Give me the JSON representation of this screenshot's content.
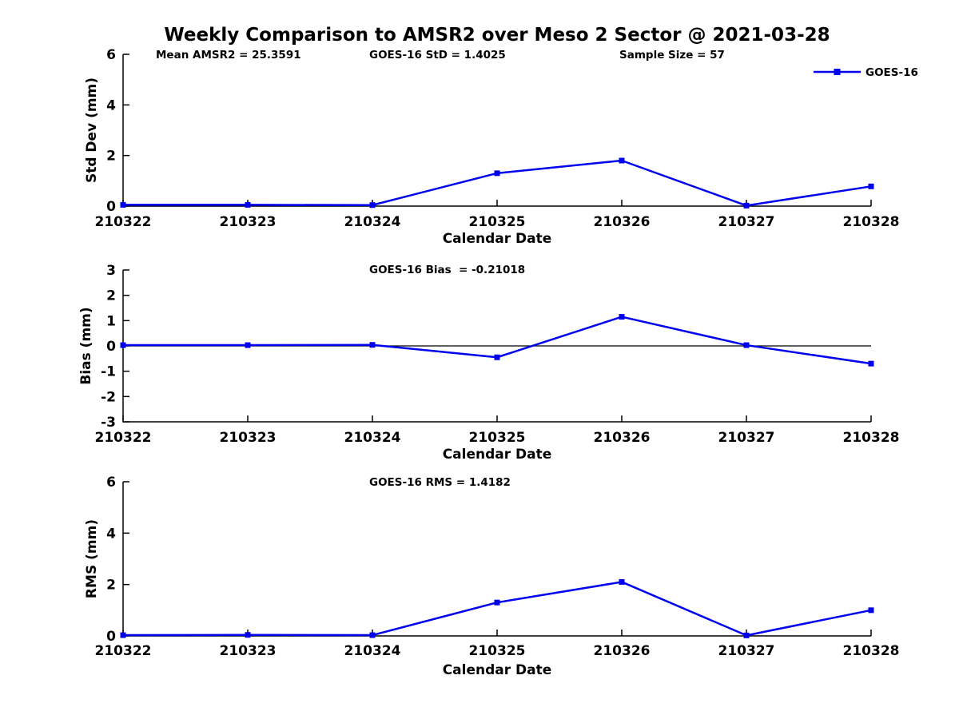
{
  "title": "Weekly Comparison to AMSR2 over Meso 2 Sector @ 2021-03-28",
  "legend": {
    "label": "GOES-16",
    "marker": "filled-square",
    "position": "top-right-outside"
  },
  "colors": {
    "line": "#0000EE",
    "axis": "#000000",
    "text": "#000000",
    "background": "#FFFFFF"
  },
  "chart_data": [
    {
      "type": "line",
      "id": "std-dev",
      "ylabel": "Std Dev (mm)",
      "xlabel": "Calendar Date",
      "categories": [
        "210322",
        "210323",
        "210324",
        "210325",
        "210326",
        "210327",
        "210328"
      ],
      "yticks": [
        0,
        2,
        4,
        6
      ],
      "ylim": [
        0,
        6
      ],
      "grid": false,
      "zero_line": false,
      "annotations": [
        "Mean AMSR2 = 25.3591",
        "GOES-16 StD = 1.4025",
        "Sample Size = 57"
      ],
      "series": [
        {
          "name": "GOES-16",
          "values": [
            0.05,
            0.05,
            0.04,
            1.3,
            1.8,
            0.02,
            0.78
          ]
        }
      ]
    },
    {
      "type": "line",
      "id": "bias",
      "ylabel": "Bias (mm)",
      "xlabel": "Calendar Date",
      "categories": [
        "210322",
        "210323",
        "210324",
        "210325",
        "210326",
        "210327",
        "210328"
      ],
      "yticks": [
        3,
        2,
        1,
        0,
        -1,
        -2,
        -3
      ],
      "ylim": [
        -3,
        3
      ],
      "grid": false,
      "zero_line": true,
      "annotations": [
        "GOES-16 Bias  = -0.21018"
      ],
      "series": [
        {
          "name": "GOES-16",
          "values": [
            0.03,
            0.03,
            0.04,
            -0.45,
            1.15,
            0.03,
            -0.7
          ]
        }
      ]
    },
    {
      "type": "line",
      "id": "rms",
      "ylabel": "RMS (mm)",
      "xlabel": "Calendar Date",
      "categories": [
        "210322",
        "210323",
        "210324",
        "210325",
        "210326",
        "210327",
        "210328"
      ],
      "yticks": [
        0,
        2,
        4,
        6
      ],
      "ylim": [
        0,
        6
      ],
      "grid": false,
      "zero_line": false,
      "annotations": [
        "GOES-16 RMS = 1.4182"
      ],
      "series": [
        {
          "name": "GOES-16",
          "values": [
            0.03,
            0.04,
            0.03,
            1.3,
            2.1,
            0.02,
            1.0
          ]
        }
      ]
    }
  ]
}
